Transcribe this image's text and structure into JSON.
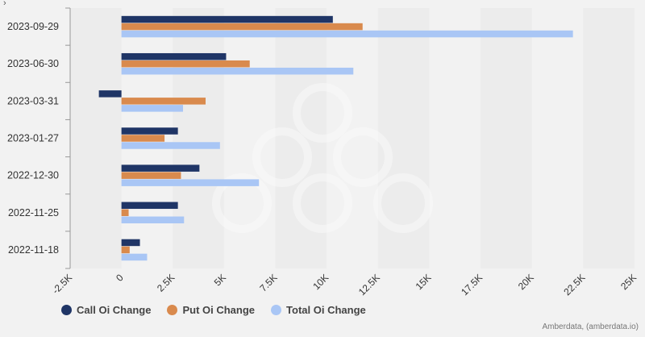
{
  "chart_data": {
    "type": "bar",
    "orientation": "horizontal",
    "categories": [
      "2023-09-29",
      "2023-06-30",
      "2023-03-31",
      "2023-01-27",
      "2022-12-30",
      "2022-11-25",
      "2022-11-18"
    ],
    "series": [
      {
        "name": "Call Oi Change",
        "color": "#1f3566",
        "values": [
          10300,
          5100,
          -1100,
          2750,
          3800,
          2750,
          900
        ]
      },
      {
        "name": "Put Oi Change",
        "color": "#d98a4d",
        "values": [
          11750,
          6250,
          4100,
          2100,
          2900,
          350,
          400
        ]
      },
      {
        "name": "Total Oi Change",
        "color": "#a9c6f5",
        "values": [
          22000,
          11300,
          3000,
          4800,
          6700,
          3050,
          1250
        ]
      }
    ],
    "xlim": [
      -2500,
      25000
    ],
    "xticks": [
      "-2.5K",
      "0",
      "2.5K",
      "5K",
      "7.5K",
      "10K",
      "12.5K",
      "15K",
      "17.5K",
      "20K",
      "22.5K",
      "25K"
    ],
    "legend_position": "bottom-left",
    "grid": "alternating vertical bands"
  },
  "credits": "Amberdata, (amberdata.io)",
  "corner_icon": "›"
}
